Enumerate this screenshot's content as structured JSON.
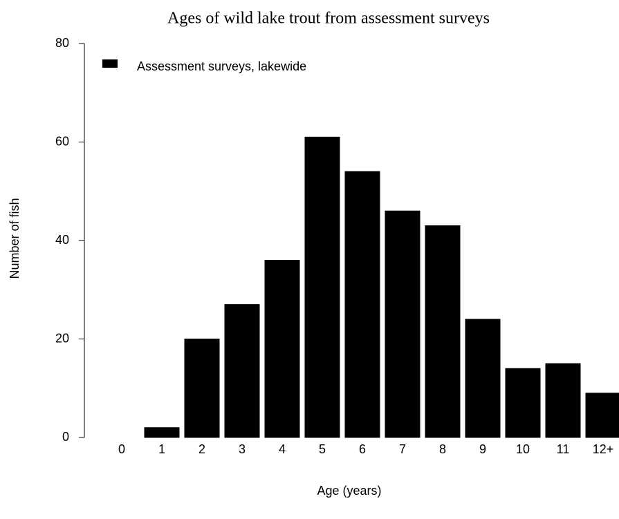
{
  "chart_data": {
    "type": "bar",
    "title": "Ages of wild lake trout from assessment surveys",
    "x_label": "Age (years)",
    "y_label": "Number of fish",
    "categories": [
      "0",
      "1",
      "2",
      "3",
      "4",
      "5",
      "6",
      "7",
      "8",
      "9",
      "10",
      "11",
      "12+"
    ],
    "series": [
      {
        "name": "Assessment surveys, lakewide",
        "color": "#000000",
        "values": [
          0,
          2,
          20,
          27,
          36,
          61,
          54,
          46,
          43,
          24,
          14,
          15,
          9
        ]
      }
    ],
    "ylim": [
      0,
      80
    ],
    "yticks": [
      0,
      20,
      40,
      60,
      80
    ],
    "grid": false,
    "legend": "top-left"
  }
}
